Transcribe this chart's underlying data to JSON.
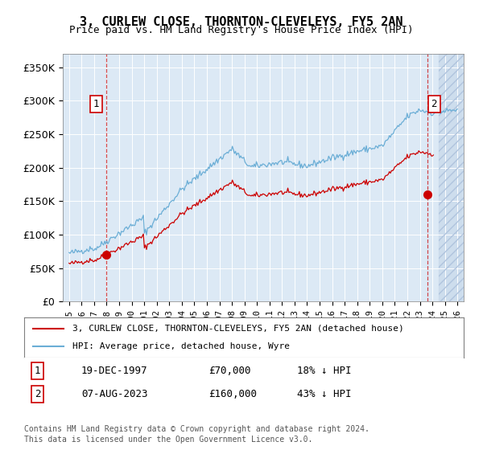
{
  "title": "3, CURLEW CLOSE, THORNTON-CLEVELEYS, FY5 2AN",
  "subtitle": "Price paid vs. HM Land Registry's House Price Index (HPI)",
  "legend_line1": "3, CURLEW CLOSE, THORNTON-CLEVELEYS, FY5 2AN (detached house)",
  "legend_line2": "HPI: Average price, detached house, Wyre",
  "sale1_label": "1",
  "sale1_date": "19-DEC-1997",
  "sale1_price": 70000,
  "sale1_hpi_pct": "18% ↓ HPI",
  "sale2_label": "2",
  "sale2_date": "07-AUG-2023",
  "sale2_price": 160000,
  "sale2_hpi_pct": "43% ↓ HPI",
  "footer": "Contains HM Land Registry data © Crown copyright and database right 2024.\nThis data is licensed under the Open Government Licence v3.0.",
  "ylim": [
    0,
    370000
  ],
  "yticks": [
    0,
    50000,
    100000,
    150000,
    200000,
    250000,
    300000,
    350000
  ],
  "hpi_color": "#6baed6",
  "price_color": "#cc0000",
  "bg_color": "#dce9f5",
  "plot_bg": "#dce9f5",
  "hatch_color": "#b0c4de"
}
